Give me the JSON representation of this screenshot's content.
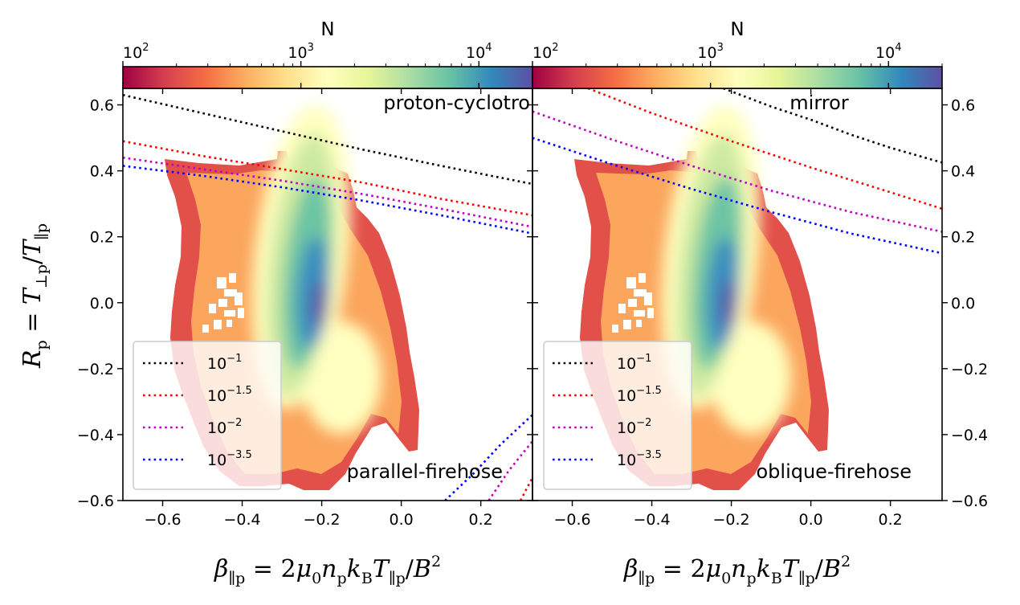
{
  "chart_data": [
    {
      "type": "heatmap",
      "panel": "left",
      "colorbar": {
        "label": "N",
        "scale": "log",
        "range": [
          100,
          20000
        ],
        "ticks": [
          "10^2",
          "10^3",
          "10^4"
        ],
        "colormap": "Spectral"
      },
      "xlabel": "β∥p = 2μ0npkBT∥p/B2",
      "ylabel": "Rp = T⊥p/T∥p",
      "xlim": [
        -0.7,
        0.33
      ],
      "ylim": [
        -0.6,
        0.65
      ],
      "xticks": [
        "−0.6",
        "−0.4",
        "−0.2",
        "0.0",
        "0.2"
      ],
      "yticks": [
        "−0.6",
        "−0.4",
        "−0.2",
        "0.0",
        "0.2",
        "0.4",
        "0.6"
      ],
      "annotations": [
        "proton-cyclotro",
        "parallel-firehose"
      ],
      "legend": {
        "placement": "lower-left",
        "entries": [
          {
            "base": "10",
            "exp": "−1",
            "color": "#000000"
          },
          {
            "base": "10",
            "exp": "−1.5",
            "color": "#ff0000"
          },
          {
            "base": "10",
            "exp": "−2",
            "color": "#c000c0"
          },
          {
            "base": "10",
            "exp": "−3.5",
            "color": "#0000ff"
          }
        ]
      },
      "series": [
        {
          "instability": "proton-cyclotron",
          "color": "#000000",
          "x": [
            -0.7,
            -0.5,
            -0.3,
            -0.1,
            0.1,
            0.33
          ],
          "y": [
            0.63,
            0.575,
            0.52,
            0.465,
            0.415,
            0.36
          ]
        },
        {
          "instability": "proton-cyclotron",
          "color": "#ff0000",
          "x": [
            -0.7,
            -0.5,
            -0.3,
            -0.1,
            0.1,
            0.33
          ],
          "y": [
            0.49,
            0.445,
            0.405,
            0.365,
            0.315,
            0.265
          ]
        },
        {
          "instability": "proton-cyclotron",
          "color": "#c000c0",
          "x": [
            -0.7,
            -0.5,
            -0.3,
            -0.1,
            0.1,
            0.33
          ],
          "y": [
            0.44,
            0.405,
            0.37,
            0.33,
            0.285,
            0.23
          ]
        },
        {
          "instability": "proton-cyclotron",
          "color": "#0000ff",
          "x": [
            -0.7,
            -0.5,
            -0.3,
            -0.1,
            0.1,
            0.33
          ],
          "y": [
            0.415,
            0.385,
            0.35,
            0.31,
            0.265,
            0.21
          ]
        },
        {
          "instability": "parallel-firehose",
          "color": "#0000ff",
          "x": [
            0.11,
            0.18,
            0.25,
            0.33
          ],
          "y": [
            -0.6,
            -0.52,
            -0.43,
            -0.34
          ]
        },
        {
          "instability": "parallel-firehose",
          "color": "#c000c0",
          "x": [
            0.22,
            0.27,
            0.33
          ],
          "y": [
            -0.6,
            -0.51,
            -0.42
          ]
        },
        {
          "instability": "parallel-firehose",
          "color": "#ff0000",
          "x": [
            0.3,
            0.33
          ],
          "y": [
            -0.6,
            -0.53
          ]
        }
      ],
      "density_ridge": {
        "x": [
          -0.3,
          -0.28,
          -0.24,
          -0.21,
          -0.2,
          -0.22,
          -0.26
        ],
        "y": [
          0.28,
          0.2,
          0.12,
          0.02,
          -0.07,
          -0.18,
          -0.28
        ]
      }
    },
    {
      "type": "heatmap",
      "panel": "right",
      "colorbar": {
        "label": "N",
        "scale": "log",
        "range": [
          100,
          20000
        ],
        "ticks": [
          "10^2",
          "10^3",
          "10^4"
        ],
        "colormap": "Spectral"
      },
      "xlabel": "β∥p = 2μ0npkBT∥p/B2",
      "xlim": [
        -0.7,
        0.33
      ],
      "ylim": [
        -0.6,
        0.65
      ],
      "xticks": [
        "−0.6",
        "−0.4",
        "−0.2",
        "0.0",
        "0.2"
      ],
      "yticks": [
        "−0.6",
        "−0.4",
        "−0.2",
        "0.0",
        "0.2",
        "0.4",
        "0.6"
      ],
      "annotations": [
        "mirror",
        "oblique-firehose"
      ],
      "legend": {
        "placement": "lower-left",
        "entries": [
          {
            "base": "10",
            "exp": "−1",
            "color": "#000000"
          },
          {
            "base": "10",
            "exp": "−1.5",
            "color": "#ff0000"
          },
          {
            "base": "10",
            "exp": "−2",
            "color": "#c000c0"
          },
          {
            "base": "10",
            "exp": "−3.5",
            "color": "#0000ff"
          }
        ]
      },
      "series": [
        {
          "instability": "mirror",
          "color": "#000000",
          "x": [
            -0.22,
            -0.1,
            0.0,
            0.1,
            0.2,
            0.33
          ],
          "y": [
            0.65,
            0.595,
            0.555,
            0.51,
            0.47,
            0.425
          ]
        },
        {
          "instability": "mirror",
          "color": "#ff0000",
          "x": [
            -0.56,
            -0.4,
            -0.2,
            0.0,
            0.2,
            0.33
          ],
          "y": [
            0.65,
            0.575,
            0.49,
            0.41,
            0.335,
            0.285
          ]
        },
        {
          "instability": "mirror",
          "color": "#c000c0",
          "x": [
            -0.7,
            -0.5,
            -0.3,
            -0.1,
            0.1,
            0.33
          ],
          "y": [
            0.58,
            0.495,
            0.415,
            0.34,
            0.275,
            0.215
          ]
        },
        {
          "instability": "mirror",
          "color": "#0000ff",
          "x": [
            -0.7,
            -0.5,
            -0.3,
            -0.1,
            0.1,
            0.33
          ],
          "y": [
            0.5,
            0.42,
            0.345,
            0.275,
            0.21,
            0.15
          ]
        }
      ],
      "density_ridge": {
        "x": [
          -0.3,
          -0.28,
          -0.24,
          -0.21,
          -0.2,
          -0.22,
          -0.26
        ],
        "y": [
          0.28,
          0.2,
          0.12,
          0.02,
          -0.07,
          -0.18,
          -0.28
        ]
      }
    }
  ]
}
